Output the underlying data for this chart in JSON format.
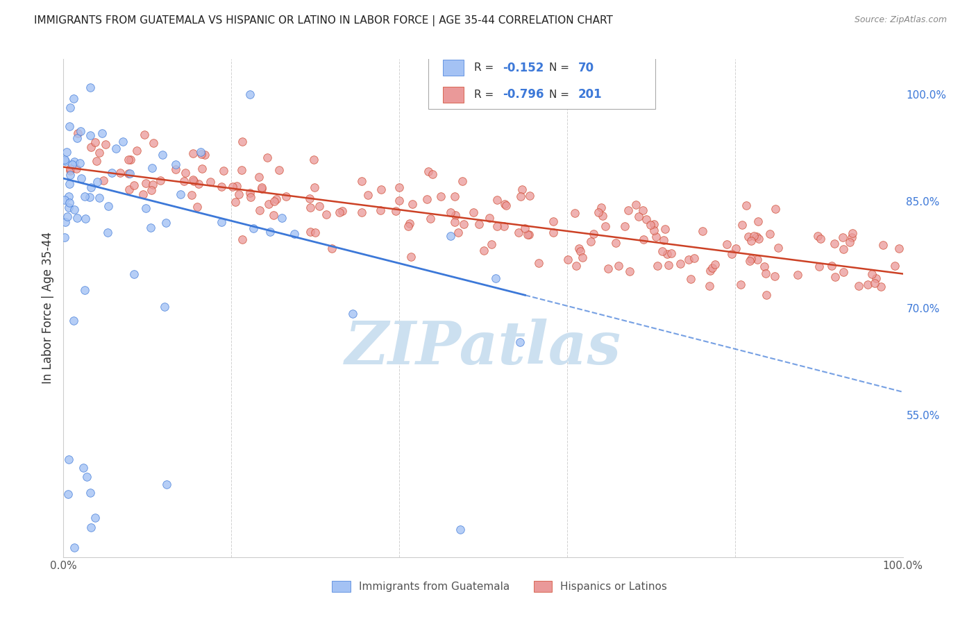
{
  "title": "IMMIGRANTS FROM GUATEMALA VS HISPANIC OR LATINO IN LABOR FORCE | AGE 35-44 CORRELATION CHART",
  "source": "Source: ZipAtlas.com",
  "ylabel": "In Labor Force | Age 35-44",
  "right_yticks": [
    0.55,
    0.7,
    0.85,
    1.0
  ],
  "right_yticklabels": [
    "55.0%",
    "70.0%",
    "85.0%",
    "100.0%"
  ],
  "blue_R": -0.152,
  "blue_N": 70,
  "pink_R": -0.796,
  "pink_N": 201,
  "blue_color": "#a4c2f4",
  "pink_color": "#ea9999",
  "blue_line_color": "#3c78d8",
  "pink_line_color": "#cc4125",
  "blue_legend_label": "Immigrants from Guatemala",
  "pink_legend_label": "Hispanics or Latinos",
  "watermark": "ZIPatlas",
  "watermark_color": "#cce0f0",
  "background_color": "#ffffff",
  "grid_color": "#cccccc",
  "title_color": "#222222",
  "source_color": "#888888",
  "right_axis_color": "#3c78d8",
  "legend_text_color": "#3c78d8",
  "xlim": [
    0.0,
    1.0
  ],
  "ylim": [
    0.35,
    1.05
  ],
  "blue_line_start_x": 0.0,
  "blue_line_start_y": 0.882,
  "blue_line_solid_end_x": 0.55,
  "blue_line_solid_end_y": 0.718,
  "blue_line_dash_end_x": 1.0,
  "blue_line_dash_end_y": 0.582,
  "pink_line_start_x": 0.0,
  "pink_line_start_y": 0.898,
  "pink_line_end_x": 1.0,
  "pink_line_end_y": 0.748
}
